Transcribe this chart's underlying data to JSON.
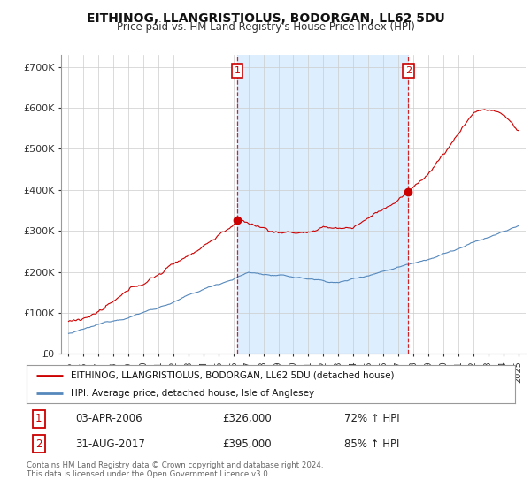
{
  "title": "EITHINOG, LLANGRISTIOLUS, BODORGAN, LL62 5DU",
  "subtitle": "Price paid vs. HM Land Registry's House Price Index (HPI)",
  "ylim": [
    0,
    730000
  ],
  "xlim_start": 1994.5,
  "xlim_end": 2025.5,
  "transaction1_x": 2006.25,
  "transaction1_y": 326000,
  "transaction1_date": "03-APR-2006",
  "transaction1_price": "£326,000",
  "transaction1_hpi": "72% ↑ HPI",
  "transaction2_x": 2017.67,
  "transaction2_y": 395000,
  "transaction2_date": "31-AUG-2017",
  "transaction2_price": "£395,000",
  "transaction2_hpi": "85% ↑ HPI",
  "legend_label_red": "EITHINOG, LLANGRISTIOLUS, BODORGAN, LL62 5DU (detached house)",
  "legend_label_blue": "HPI: Average price, detached house, Isle of Anglesey",
  "footer": "Contains HM Land Registry data © Crown copyright and database right 2024.\nThis data is licensed under the Open Government Licence v3.0.",
  "red_color": "#cc0000",
  "blue_color": "#5588bb",
  "shade_color": "#ddeeff",
  "background_color": "#ffffff",
  "grid_color": "#cccccc"
}
